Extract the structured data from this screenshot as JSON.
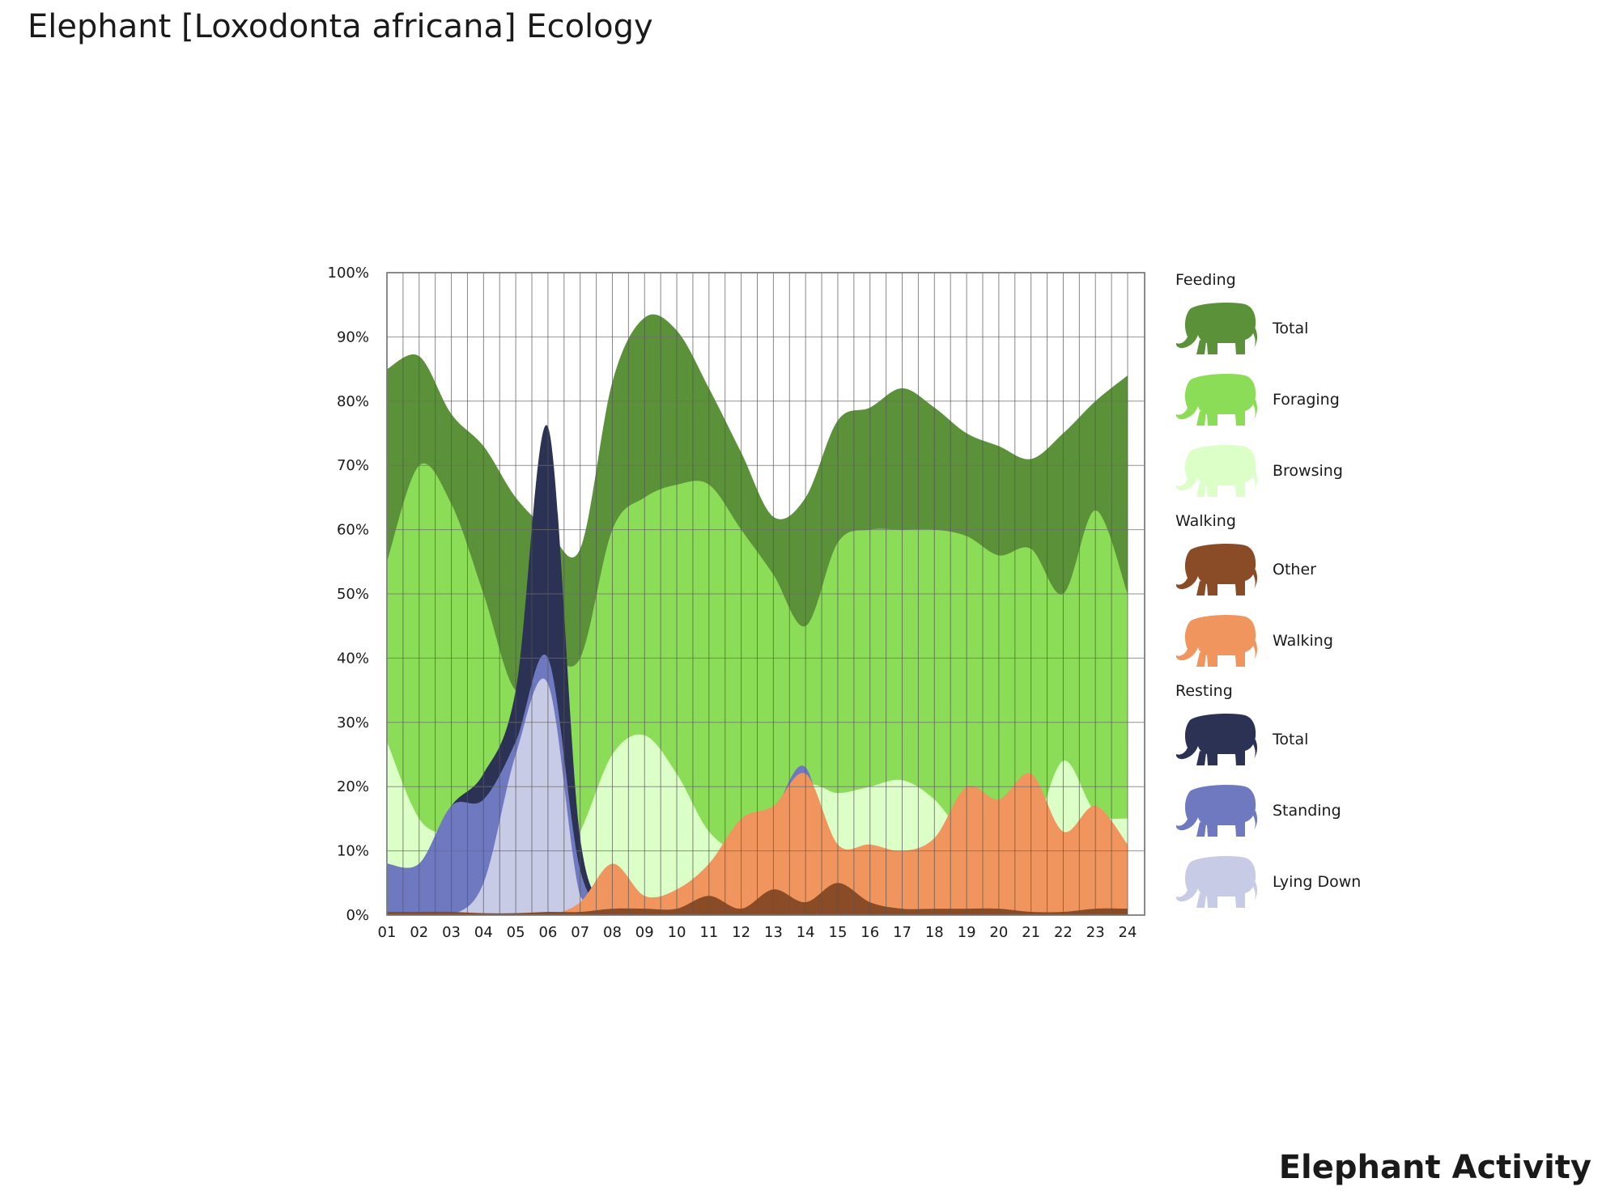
{
  "page_title": "Elephant [Loxodonta africana] Ecology",
  "footer_title": "Elephant Activity",
  "chart_data": {
    "type": "area",
    "title": "",
    "xlabel": "",
    "ylabel": "",
    "ylim": [
      0,
      100
    ],
    "grid": true,
    "legend_position": "right",
    "x": [
      "01",
      "02",
      "03",
      "04",
      "05",
      "06",
      "07",
      "08",
      "09",
      "10",
      "11",
      "12",
      "13",
      "14",
      "15",
      "16",
      "17",
      "18",
      "19",
      "20",
      "21",
      "22",
      "23",
      "24"
    ],
    "y_ticks": [
      "0%",
      "10%",
      "20%",
      "30%",
      "40%",
      "50%",
      "60%",
      "70%",
      "80%",
      "90%",
      "100%"
    ],
    "series": [
      {
        "group": "Feeding",
        "name": "Total",
        "color": "#5a9139",
        "values": [
          85,
          87,
          78,
          73,
          65,
          60,
          57,
          83,
          93,
          91,
          82,
          72,
          62,
          65,
          77,
          79,
          82,
          79,
          75,
          73,
          71,
          75,
          80,
          84
        ]
      },
      {
        "group": "Feeding",
        "name": "Foraging",
        "color": "#8bdc56",
        "values": [
          55,
          70,
          64,
          50,
          35,
          40,
          40,
          60,
          65,
          67,
          67,
          60,
          53,
          45,
          58,
          60,
          60,
          60,
          59,
          56,
          57,
          50,
          63,
          50
        ]
      },
      {
        "group": "Feeding",
        "name": "Browsing",
        "color": "#dcffc8",
        "values": [
          27,
          15,
          12,
          8,
          5,
          5,
          13,
          25,
          28,
          22,
          13,
          10,
          12,
          20,
          19,
          20,
          21,
          18,
          12,
          10,
          12,
          24,
          16,
          15
        ]
      },
      {
        "group": "Walking",
        "name": "Other",
        "color": "#8a4b27",
        "values": [
          0.5,
          0.5,
          0.5,
          0.3,
          0.3,
          0.5,
          0.5,
          1,
          1,
          1,
          3,
          1,
          4,
          2,
          5,
          2,
          1,
          1,
          1,
          1,
          0.5,
          0.5,
          1,
          1
        ]
      },
      {
        "group": "Walking",
        "name": "Walking",
        "color": "#f0955e",
        "values": [
          0,
          0,
          0,
          0,
          0,
          0,
          2,
          8,
          3,
          4,
          8,
          15,
          17,
          22,
          11,
          11,
          10,
          12,
          20,
          18,
          22,
          13,
          17,
          11
        ]
      },
      {
        "group": "Resting",
        "name": "Total",
        "color": "#2c3254",
        "values": [
          8,
          8,
          17,
          22,
          35,
          76,
          12,
          2,
          1,
          1,
          1,
          1,
          1,
          1,
          1,
          1,
          1,
          1,
          1,
          1,
          1,
          1,
          1,
          1
        ]
      },
      {
        "group": "Resting",
        "name": "Standing",
        "color": "#6f79c0",
        "values": [
          8,
          8,
          17,
          18,
          27,
          40,
          7,
          1,
          1,
          3,
          5,
          10,
          16,
          23,
          6,
          7,
          6,
          8,
          4,
          7,
          8,
          11,
          2,
          4
        ]
      },
      {
        "group": "Resting",
        "name": "Lying Down",
        "color": "#c8cbe6",
        "values": [
          0,
          0,
          0,
          5,
          25,
          36,
          3,
          0,
          0,
          0,
          0,
          0,
          0,
          0,
          0,
          0,
          0,
          0,
          0,
          0,
          0,
          0,
          0,
          0
        ]
      }
    ],
    "legend_groups": [
      {
        "heading": "Feeding",
        "items": [
          "Total",
          "Foraging",
          "Browsing"
        ]
      },
      {
        "heading": "Walking",
        "items": [
          "Other",
          "Walking"
        ]
      },
      {
        "heading": "Resting",
        "items": [
          "Total",
          "Standing",
          "Lying Down"
        ]
      }
    ]
  }
}
